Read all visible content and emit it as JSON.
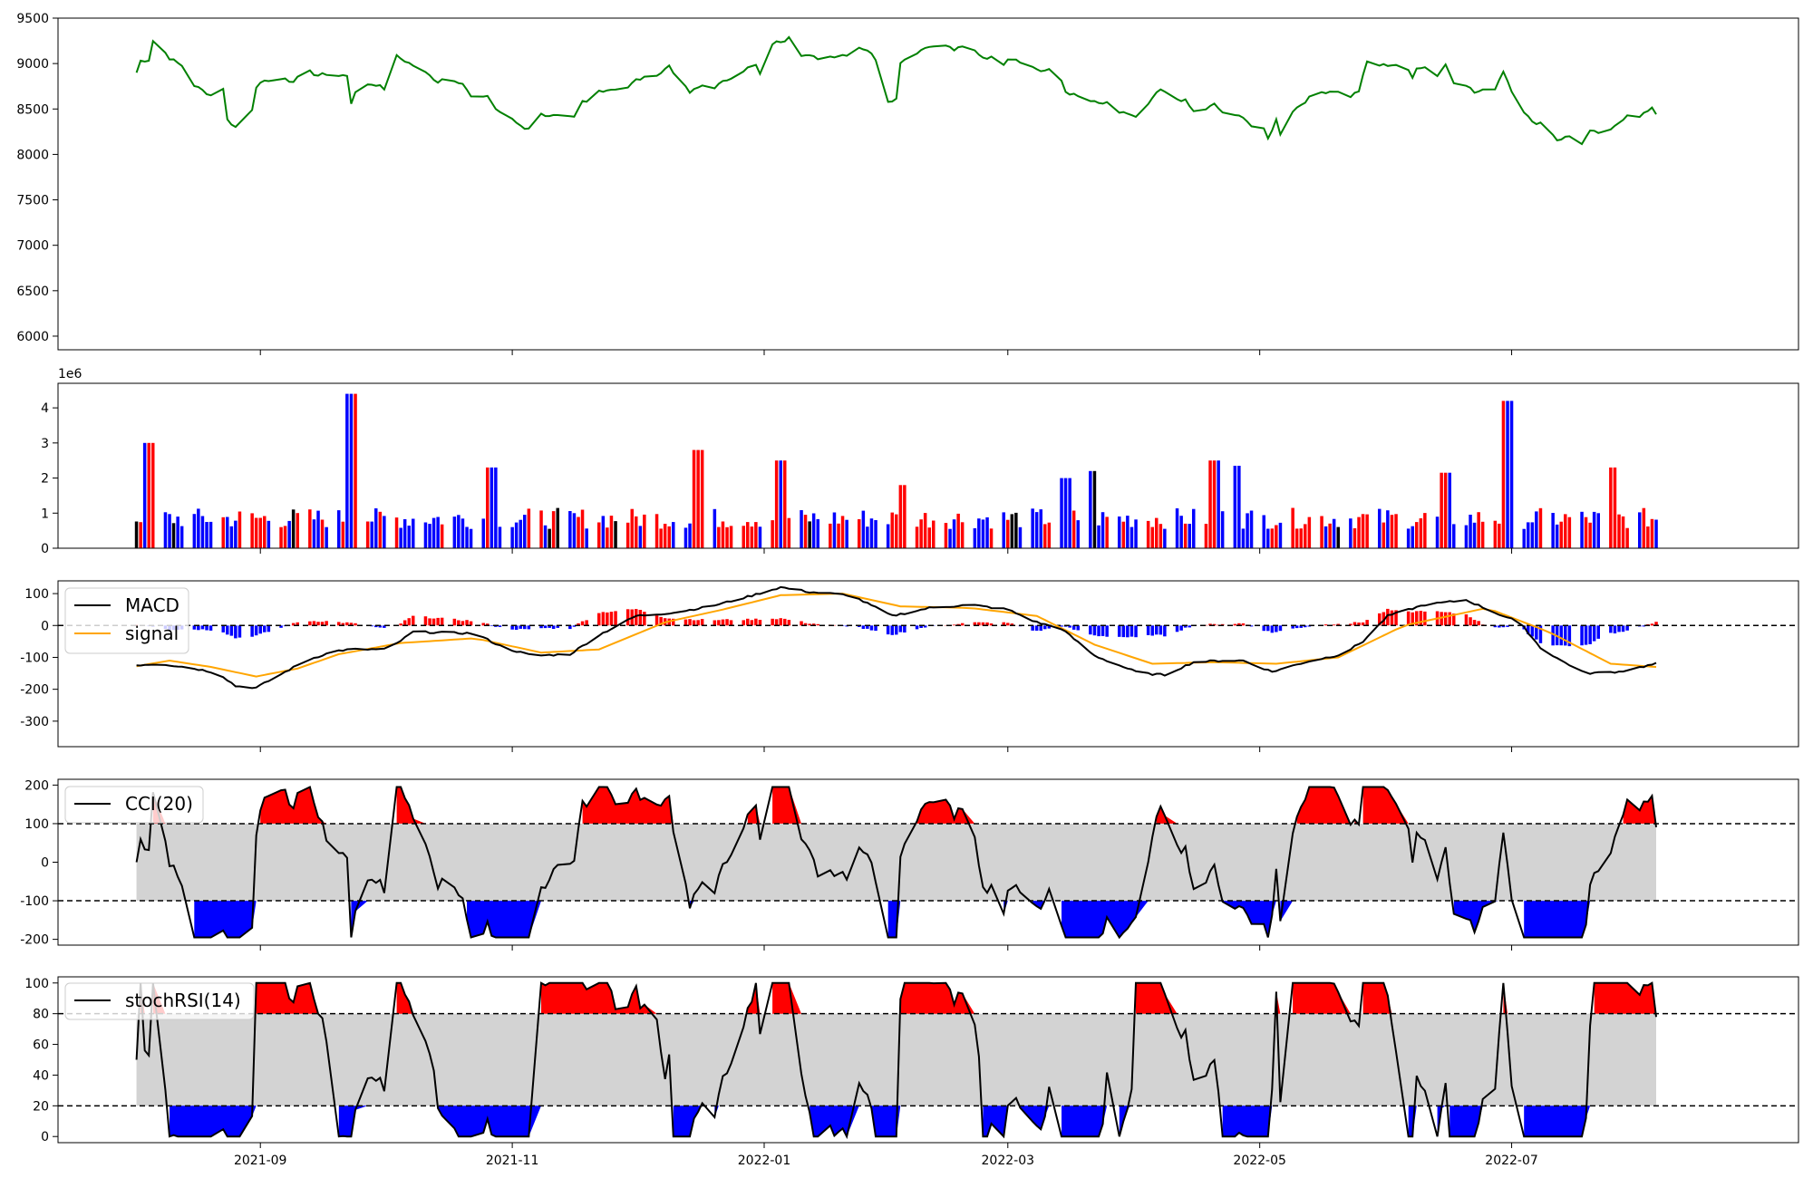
{
  "chart_data": [
    {
      "type": "line",
      "panel": "price",
      "series": [
        {
          "color": "#008000"
        }
      ],
      "ylim": [
        5850,
        9500
      ],
      "yticks": [
        6000,
        6500,
        7000,
        7500,
        8000,
        8500,
        9000,
        9500
      ],
      "grid": false,
      "x_start": "2021-08-01",
      "x_end": "2022-08-05",
      "keypoints": [
        [
          "2021-08-01",
          8960
        ],
        [
          "2021-08-02",
          8900
        ],
        [
          "2021-08-03",
          9030
        ],
        [
          "2021-08-05",
          9040
        ],
        [
          "2021-08-06",
          9250
        ],
        [
          "2021-08-08",
          9180
        ],
        [
          "2021-08-10",
          9060
        ],
        [
          "2021-08-14",
          8950
        ],
        [
          "2021-08-16",
          8760
        ],
        [
          "2021-08-20",
          8650
        ],
        [
          "2021-08-22",
          8600
        ],
        [
          "2021-08-23",
          8730
        ],
        [
          "2021-08-24",
          8380
        ],
        [
          "2021-08-26",
          8300
        ],
        [
          "2021-08-30",
          8500
        ],
        [
          "2021-08-31",
          8750
        ],
        [
          "2021-09-03",
          8820
        ],
        [
          "2021-09-05",
          8720
        ],
        [
          "2021-09-06",
          8830
        ],
        [
          "2021-09-09",
          8800
        ],
        [
          "2021-09-12",
          8960
        ],
        [
          "2021-09-14",
          8880
        ],
        [
          "2021-09-22",
          8870
        ],
        [
          "2021-09-23",
          8570
        ],
        [
          "2021-09-25",
          8780
        ],
        [
          "2021-09-29",
          8770
        ],
        [
          "2021-10-02",
          8700
        ],
        [
          "2021-10-04",
          9080
        ],
        [
          "2021-10-10",
          8930
        ],
        [
          "2021-10-14",
          8800
        ],
        [
          "2021-10-16",
          8860
        ],
        [
          "2021-10-20",
          8780
        ],
        [
          "2021-10-23",
          8560
        ],
        [
          "2021-10-26",
          8650
        ],
        [
          "2021-10-28",
          8500
        ],
        [
          "2021-11-04",
          8290
        ],
        [
          "2021-11-06",
          8300
        ],
        [
          "2021-11-08",
          8440
        ],
        [
          "2021-11-16",
          8400
        ],
        [
          "2021-11-18",
          8580
        ],
        [
          "2021-11-20",
          8570
        ],
        [
          "2021-11-22",
          8700
        ],
        [
          "2021-11-29",
          8740
        ],
        [
          "2021-12-01",
          8820
        ],
        [
          "2021-12-04",
          8850
        ],
        [
          "2021-12-07",
          8900
        ],
        [
          "2021-12-09",
          8980
        ],
        [
          "2021-12-11",
          8840
        ],
        [
          "2021-12-14",
          8680
        ],
        [
          "2021-12-17",
          8760
        ],
        [
          "2021-12-19",
          8860
        ],
        [
          "2021-12-20",
          8740
        ],
        [
          "2021-12-24",
          8850
        ],
        [
          "2021-12-28",
          8950
        ],
        [
          "2021-12-30",
          8980
        ],
        [
          "2022-01-02",
          8660
        ],
        [
          "2022-01-03",
          9220
        ],
        [
          "2022-01-06",
          9260
        ],
        [
          "2022-01-08",
          9350
        ],
        [
          "2022-01-10",
          9100
        ],
        [
          "2022-01-14",
          9060
        ],
        [
          "2022-01-21",
          9100
        ],
        [
          "2022-01-24",
          9180
        ],
        [
          "2022-01-26",
          9150
        ],
        [
          "2022-01-30",
          8950
        ],
        [
          "2022-01-31",
          8590
        ],
        [
          "2022-02-02",
          8610
        ],
        [
          "2022-02-03",
          9020
        ],
        [
          "2022-02-08",
          9150
        ],
        [
          "2022-02-10",
          9200
        ],
        [
          "2022-02-12",
          9160
        ],
        [
          "2022-02-14",
          9200
        ],
        [
          "2022-02-16",
          9150
        ],
        [
          "2022-02-18",
          9180
        ],
        [
          "2022-02-21",
          9140
        ],
        [
          "2022-02-23",
          9070
        ],
        [
          "2022-02-26",
          9060
        ],
        [
          "2022-02-28",
          9000
        ],
        [
          "2022-03-01",
          9060
        ],
        [
          "2022-03-03",
          9050
        ],
        [
          "2022-03-06",
          8980
        ],
        [
          "2022-03-09",
          8920
        ],
        [
          "2022-03-13",
          8930
        ],
        [
          "2022-03-15",
          8690
        ],
        [
          "2022-03-20",
          8600
        ],
        [
          "2022-03-23",
          8560
        ],
        [
          "2022-03-25",
          8560
        ],
        [
          "2022-03-27",
          8420
        ],
        [
          "2022-03-29",
          8470
        ],
        [
          "2022-04-02",
          8380
        ],
        [
          "2022-04-05",
          8620
        ],
        [
          "2022-04-07",
          8710
        ],
        [
          "2022-04-10",
          8620
        ],
        [
          "2022-04-13",
          8590
        ],
        [
          "2022-04-15",
          8470
        ],
        [
          "2022-04-18",
          8500
        ],
        [
          "2022-04-20",
          8550
        ],
        [
          "2022-04-23",
          8420
        ],
        [
          "2022-04-27",
          8420
        ],
        [
          "2022-04-29",
          8310
        ],
        [
          "2022-05-01",
          8370
        ],
        [
          "2022-05-03",
          8170
        ],
        [
          "2022-05-05",
          8380
        ],
        [
          "2022-05-07",
          8080
        ],
        [
          "2022-05-09",
          8480
        ],
        [
          "2022-05-13",
          8620
        ],
        [
          "2022-05-15",
          8680
        ],
        [
          "2022-05-19",
          8700
        ],
        [
          "2022-05-23",
          8640
        ],
        [
          "2022-05-25",
          8700
        ],
        [
          "2022-05-27",
          9020
        ],
        [
          "2022-05-29",
          8980
        ],
        [
          "2022-06-05",
          8990
        ],
        [
          "2022-06-07",
          8840
        ],
        [
          "2022-06-08",
          8960
        ],
        [
          "2022-06-11",
          8960
        ],
        [
          "2022-06-13",
          8870
        ],
        [
          "2022-06-15",
          8990
        ],
        [
          "2022-06-17",
          8800
        ],
        [
          "2022-06-20",
          8770
        ],
        [
          "2022-06-22",
          8680
        ],
        [
          "2022-06-27",
          8730
        ],
        [
          "2022-06-29",
          8920
        ],
        [
          "2022-07-02",
          8600
        ],
        [
          "2022-07-06",
          8350
        ],
        [
          "2022-07-09",
          8350
        ],
        [
          "2022-07-12",
          8160
        ],
        [
          "2022-07-15",
          8200
        ],
        [
          "2022-07-17",
          8060
        ],
        [
          "2022-07-20",
          8250
        ],
        [
          "2022-07-22",
          8240
        ],
        [
          "2022-07-25",
          8260
        ],
        [
          "2022-07-29",
          8440
        ],
        [
          "2022-07-31",
          8400
        ],
        [
          "2022-08-04",
          8500
        ],
        [
          "2022-08-05",
          8450
        ]
      ],
      "xticks": [
        "2021-09",
        "2021-11",
        "2022-01",
        "2022-03",
        "2022-05",
        "2022-07"
      ],
      "xtick_positions": [
        "2021-09-01",
        "2021-11-01",
        "2022-01-01",
        "2022-03-01",
        "2022-05-01",
        "2022-07-01"
      ]
    },
    {
      "type": "bar",
      "panel": "volume",
      "ylim": [
        0,
        4700000
      ],
      "yticks": [
        0,
        1,
        2,
        3,
        4
      ],
      "offset_text": "1e6",
      "colors": {
        "up": "#ff0000",
        "down": "#0000ff",
        "flat": "#000000"
      },
      "peaks": [
        [
          "2021-08-05",
          3.0
        ],
        [
          "2021-09-23",
          4.4
        ],
        [
          "2021-10-27",
          2.3
        ],
        [
          "2021-12-16",
          2.8
        ],
        [
          "2022-01-05",
          2.5
        ],
        [
          "2022-02-04",
          1.8
        ],
        [
          "2022-03-15",
          2.0
        ],
        [
          "2022-03-21",
          2.2
        ],
        [
          "2022-04-20",
          2.5
        ],
        [
          "2022-04-25",
          2.35
        ],
        [
          "2022-06-15",
          2.15
        ],
        [
          "2022-06-30",
          4.2
        ],
        [
          "2022-07-25",
          2.3
        ]
      ]
    },
    {
      "type": "line",
      "panel": "macd",
      "ylim": [
        -380,
        140
      ],
      "yticks": [
        -300,
        -200,
        -100,
        0,
        100
      ],
      "legend": [
        "MACD",
        "signal"
      ],
      "legend_position": "upper left",
      "series": [
        {
          "name": "MACD",
          "color": "#000000",
          "keypoints": [
            [
              "2021-08-01",
              -125
            ],
            [
              "2021-08-08",
              -120
            ],
            [
              "2021-08-16",
              -135
            ],
            [
              "2021-08-22",
              -150
            ],
            [
              "2021-08-26",
              -190
            ],
            [
              "2021-08-31",
              -195
            ],
            [
              "2021-09-05",
              -160
            ],
            [
              "2021-09-12",
              -110
            ],
            [
              "2021-09-19",
              -80
            ],
            [
              "2021-09-23",
              -75
            ],
            [
              "2021-10-02",
              -75
            ],
            [
              "2021-10-08",
              -20
            ],
            [
              "2021-10-23",
              -25
            ],
            [
              "2021-10-30",
              -70
            ],
            [
              "2021-11-06",
              -95
            ],
            [
              "2021-11-15",
              -90
            ],
            [
              "2021-11-22",
              -30
            ],
            [
              "2021-12-01",
              30
            ],
            [
              "2021-12-10",
              40
            ],
            [
              "2021-12-19",
              60
            ],
            [
              "2021-12-28",
              90
            ],
            [
              "2022-01-05",
              120
            ],
            [
              "2022-01-12",
              105
            ],
            [
              "2022-01-22",
              95
            ],
            [
              "2022-02-01",
              30
            ],
            [
              "2022-02-10",
              55
            ],
            [
              "2022-02-20",
              65
            ],
            [
              "2022-03-01",
              50
            ],
            [
              "2022-03-08",
              10
            ],
            [
              "2022-03-14",
              -10
            ],
            [
              "2022-03-22",
              -95
            ],
            [
              "2022-04-02",
              -150
            ],
            [
              "2022-04-08",
              -155
            ],
            [
              "2022-04-15",
              -115
            ],
            [
              "2022-04-22",
              -110
            ],
            [
              "2022-04-27",
              -110
            ],
            [
              "2022-05-04",
              -145
            ],
            [
              "2022-05-12",
              -115
            ],
            [
              "2022-05-21",
              -90
            ],
            [
              "2022-05-26",
              -50
            ],
            [
              "2022-06-01",
              30
            ],
            [
              "2022-06-10",
              65
            ],
            [
              "2022-06-20",
              80
            ],
            [
              "2022-06-27",
              40
            ],
            [
              "2022-07-03",
              10
            ],
            [
              "2022-07-08",
              -70
            ],
            [
              "2022-07-13",
              -110
            ],
            [
              "2022-07-19",
              -150
            ],
            [
              "2022-07-27",
              -145
            ],
            [
              "2022-08-05",
              -120
            ]
          ]
        },
        {
          "name": "signal",
          "color": "#ffa500",
          "keypoints": [
            [
              "2021-08-01",
              -130
            ],
            [
              "2021-08-10",
              -110
            ],
            [
              "2021-08-20",
              -130
            ],
            [
              "2021-08-31",
              -160
            ],
            [
              "2021-09-10",
              -135
            ],
            [
              "2021-09-20",
              -90
            ],
            [
              "2021-10-05",
              -55
            ],
            [
              "2021-10-23",
              -40
            ],
            [
              "2021-11-08",
              -85
            ],
            [
              "2021-11-22",
              -75
            ],
            [
              "2021-12-08",
              10
            ],
            [
              "2021-12-22",
              50
            ],
            [
              "2022-01-05",
              95
            ],
            [
              "2022-01-20",
              100
            ],
            [
              "2022-02-03",
              60
            ],
            [
              "2022-02-20",
              55
            ],
            [
              "2022-03-08",
              30
            ],
            [
              "2022-03-22",
              -60
            ],
            [
              "2022-04-05",
              -120
            ],
            [
              "2022-04-20",
              -115
            ],
            [
              "2022-05-05",
              -120
            ],
            [
              "2022-05-20",
              -100
            ],
            [
              "2022-06-05",
              0
            ],
            [
              "2022-06-25",
              55
            ],
            [
              "2022-07-10",
              -20
            ],
            [
              "2022-07-25",
              -120
            ],
            [
              "2022-08-05",
              -130
            ]
          ]
        }
      ],
      "histogram_colors": {
        "positive": "#ff0000",
        "negative": "#0000ff"
      }
    },
    {
      "type": "area",
      "panel": "cci",
      "ylim": [
        -215,
        215
      ],
      "yticks": [
        -200,
        -100,
        0,
        100,
        200
      ],
      "legend": [
        "CCI(20)"
      ],
      "legend_position": "upper left",
      "bands": [
        -100,
        100
      ],
      "series": [
        {
          "name": "CCI(20)",
          "color": "#000000"
        }
      ],
      "fill_colors": {
        "band": "#d3d3d3",
        "above": "#ff0000",
        "below": "#0000ff"
      }
    },
    {
      "type": "area",
      "panel": "stochrsi",
      "ylim": [
        -4,
        104
      ],
      "yticks": [
        0,
        20,
        40,
        60,
        80,
        100
      ],
      "legend": [
        "stochRSI(14)"
      ],
      "legend_position": "upper left",
      "bands": [
        20,
        80
      ],
      "series": [
        {
          "name": "stochRSI(14)",
          "color": "#000000"
        }
      ],
      "fill_colors": {
        "band": "#d3d3d3",
        "above": "#ff0000",
        "below": "#0000ff"
      }
    }
  ]
}
